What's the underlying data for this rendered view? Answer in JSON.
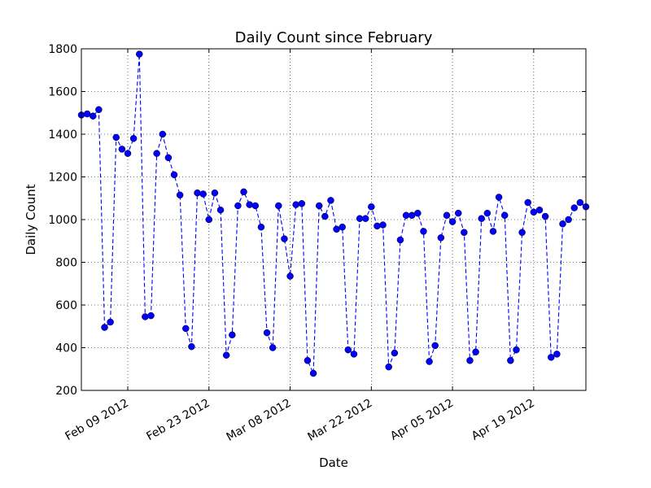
{
  "chart_data": {
    "type": "line",
    "title": "Daily Count since February",
    "xlabel": "Date",
    "ylabel": "Daily Count",
    "ylim": [
      200,
      1800
    ],
    "xlim": [
      "2012-02-01",
      "2012-04-28"
    ],
    "yticks": [
      "200",
      "400",
      "600",
      "800",
      "1000",
      "1200",
      "1400",
      "1600",
      "1800"
    ],
    "xticks": [
      {
        "date": "2012-02-09",
        "label": "Feb 09 2012"
      },
      {
        "date": "2012-02-23",
        "label": "Feb 23 2012"
      },
      {
        "date": "2012-03-08",
        "label": "Mar 08 2012"
      },
      {
        "date": "2012-03-22",
        "label": "Mar 22 2012"
      },
      {
        "date": "2012-04-05",
        "label": "Apr 05 2012"
      },
      {
        "date": "2012-04-19",
        "label": "Apr 19 2012"
      }
    ],
    "grid": true,
    "line_style": "dashed",
    "marker": "circle",
    "color": "#0000ff",
    "series": [
      {
        "x": [
          "2012-02-01",
          "2012-02-02",
          "2012-02-03",
          "2012-02-04",
          "2012-02-05",
          "2012-02-06",
          "2012-02-07",
          "2012-02-08",
          "2012-02-09",
          "2012-02-10",
          "2012-02-11",
          "2012-02-12",
          "2012-02-13",
          "2012-02-14",
          "2012-02-15",
          "2012-02-16",
          "2012-02-17",
          "2012-02-18",
          "2012-02-19",
          "2012-02-20",
          "2012-02-21",
          "2012-02-22",
          "2012-02-23",
          "2012-02-24",
          "2012-02-25",
          "2012-02-26",
          "2012-02-27",
          "2012-02-28",
          "2012-02-29",
          "2012-03-01",
          "2012-03-02",
          "2012-03-03",
          "2012-03-04",
          "2012-03-05",
          "2012-03-06",
          "2012-03-07",
          "2012-03-08",
          "2012-03-09",
          "2012-03-10",
          "2012-03-11",
          "2012-03-12",
          "2012-03-13",
          "2012-03-14",
          "2012-03-15",
          "2012-03-16",
          "2012-03-17",
          "2012-03-18",
          "2012-03-19",
          "2012-03-20",
          "2012-03-21",
          "2012-03-22",
          "2012-03-23",
          "2012-03-24",
          "2012-03-25",
          "2012-03-26",
          "2012-03-27",
          "2012-03-28",
          "2012-03-29",
          "2012-03-30",
          "2012-03-31",
          "2012-04-01",
          "2012-04-02",
          "2012-04-03",
          "2012-04-04",
          "2012-04-05",
          "2012-04-06",
          "2012-04-07",
          "2012-04-08",
          "2012-04-09",
          "2012-04-10",
          "2012-04-11",
          "2012-04-12",
          "2012-04-13",
          "2012-04-14",
          "2012-04-15",
          "2012-04-16",
          "2012-04-17",
          "2012-04-18",
          "2012-04-19",
          "2012-04-20",
          "2012-04-21",
          "2012-04-22",
          "2012-04-23",
          "2012-04-24",
          "2012-04-25",
          "2012-04-26",
          "2012-04-27",
          "2012-04-28"
        ],
        "values": [
          1490,
          1495,
          1485,
          1515,
          495,
          520,
          1385,
          1330,
          1310,
          1380,
          1775,
          545,
          550,
          1310,
          1400,
          1290,
          1210,
          1115,
          490,
          405,
          1125,
          1120,
          1000,
          1125,
          1045,
          365,
          460,
          1065,
          1130,
          1070,
          1065,
          965,
          470,
          400,
          1065,
          910,
          735,
          1070,
          1075,
          340,
          280,
          1065,
          1015,
          1090,
          955,
          965,
          390,
          370,
          1005,
          1005,
          1060,
          970,
          975,
          310,
          375,
          905,
          1020,
          1020,
          1030,
          945,
          335,
          410,
          915,
          1020,
          990,
          1030,
          940,
          340,
          380,
          1005,
          1030,
          945,
          1105,
          1020,
          340,
          390,
          940,
          1080,
          1035,
          1045,
          1015,
          355,
          370,
          980,
          1000,
          1055,
          1080,
          1060
        ]
      }
    ]
  }
}
